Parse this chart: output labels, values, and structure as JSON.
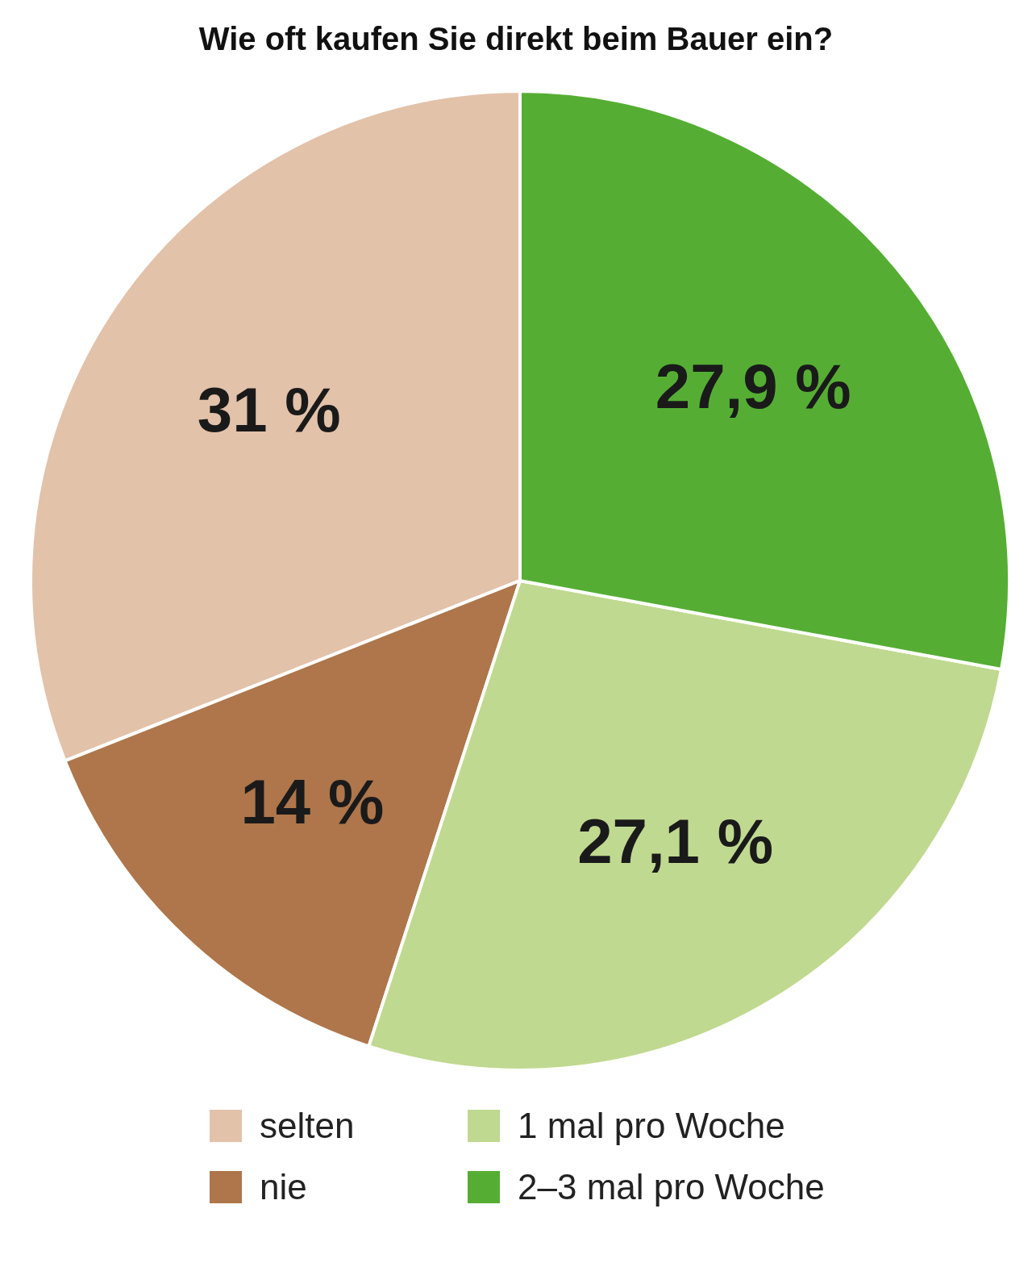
{
  "chart_data": {
    "type": "pie",
    "title": "Wie oft kaufen Sie direkt beim Bauer ein?",
    "categories": [
      "selten",
      "nie",
      "1 mal pro Woche",
      "2–3 mal pro Woche"
    ],
    "values": [
      31,
      14,
      27.1,
      27.9
    ],
    "value_labels": [
      "31 %",
      "14 %",
      "27,1 %",
      "27,9 %"
    ],
    "colors": [
      "#e3c2aa",
      "#ae764a",
      "#c0d990",
      "#55ae33"
    ],
    "legend": "bottom"
  }
}
